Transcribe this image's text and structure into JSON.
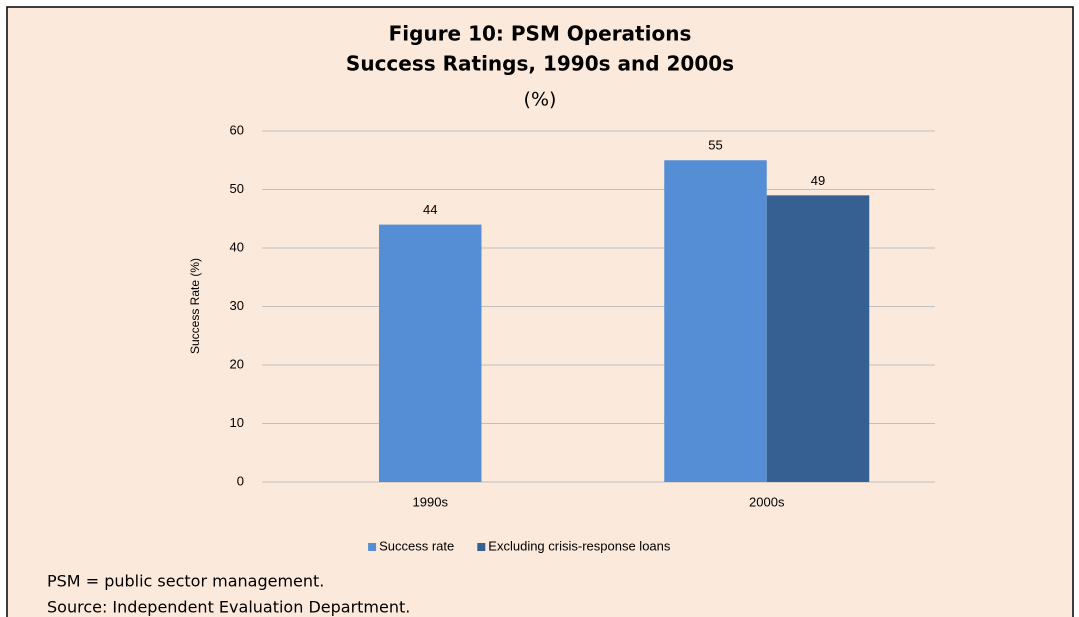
{
  "chart_data": {
    "type": "bar",
    "title": "Figure 10: PSM Operations",
    "subtitle": "Success Ratings, 1990s and 2000s",
    "unit_label": "(%)",
    "y_label": "Success Rate (%)",
    "categories": [
      "1990s",
      "2000s"
    ],
    "series": [
      {
        "name": "Success rate",
        "color": "#558ed5",
        "values": [
          44,
          55
        ]
      },
      {
        "name": "Excluding crisis-response loans",
        "color": "#376092",
        "values": [
          null,
          49
        ]
      }
    ],
    "ylim": [
      0,
      60
    ],
    "yticks": [
      0,
      10,
      20,
      30,
      40,
      50,
      60
    ],
    "grid": true,
    "legend": "bottom"
  },
  "notes": [
    "PSM = public sector management.",
    "Source: Independent Evaluation Department."
  ]
}
